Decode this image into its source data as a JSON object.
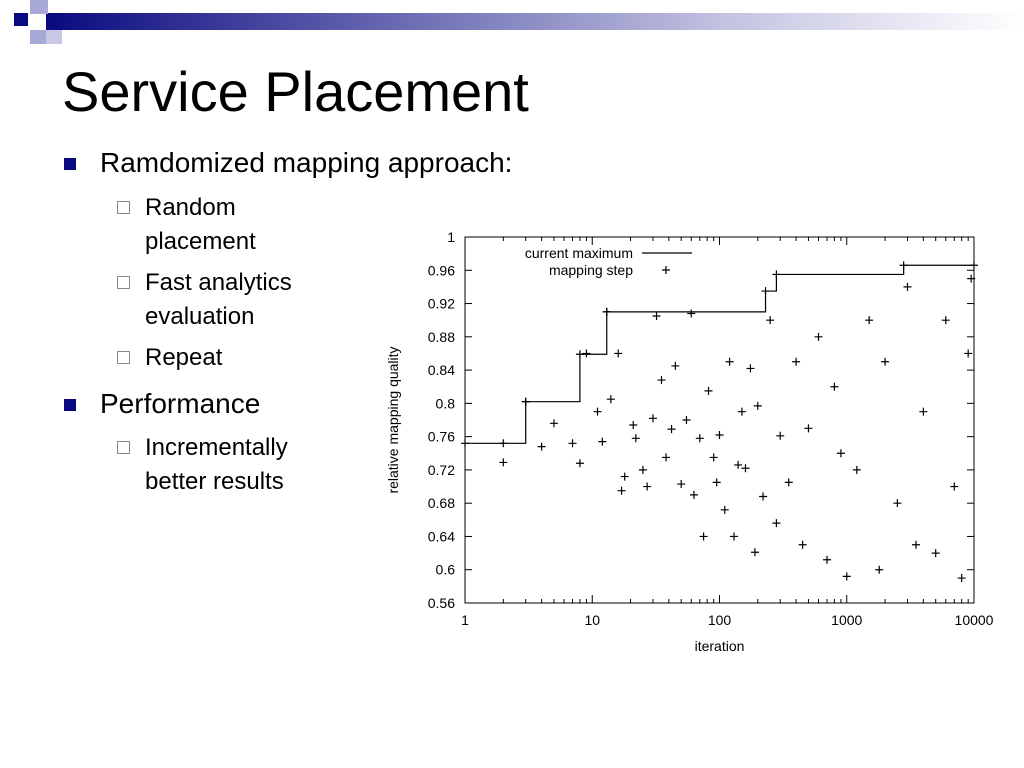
{
  "slide": {
    "title": "Service Placement",
    "bullets": [
      {
        "text": "Ramdomized mapping approach:",
        "sub": [
          {
            "lines": [
              "Random",
              "placement"
            ]
          },
          {
            "lines": [
              "Fast analytics",
              "evaluation"
            ]
          },
          {
            "lines": [
              "Repeat"
            ]
          }
        ]
      },
      {
        "text": "Performance",
        "sub": [
          {
            "lines": [
              "Incrementally",
              "better results"
            ]
          }
        ]
      }
    ],
    "colors": {
      "accent": "#0a0a80",
      "header_gradient_end": "#ffffff"
    }
  },
  "chart_data": {
    "type": "scatter",
    "xlabel": "iteration",
    "ylabel": "relative mapping quality",
    "xscale": "log",
    "xlim": [
      1,
      10000
    ],
    "ylim": [
      0.56,
      1.0
    ],
    "xticks": [
      1,
      10,
      100,
      1000,
      10000
    ],
    "xtick_labels": [
      "1",
      "10",
      "100",
      "1000",
      "10000"
    ],
    "yticks": [
      0.56,
      0.6,
      0.64,
      0.68,
      0.72,
      0.76,
      0.8,
      0.84,
      0.88,
      0.92,
      0.96,
      1.0
    ],
    "ytick_labels": [
      "0.56",
      "0.6",
      "0.64",
      "0.68",
      "0.72",
      "0.76",
      "0.8",
      "0.84",
      "0.88",
      "0.92",
      "0.96",
      "1"
    ],
    "grid": false,
    "legend_position": "top-left",
    "series": [
      {
        "name": "current maximum",
        "kind": "step",
        "x": [
          1,
          2,
          3,
          8,
          13,
          230,
          280,
          2800,
          10000
        ],
        "y": [
          0.752,
          0.752,
          0.802,
          0.859,
          0.91,
          0.935,
          0.955,
          0.966,
          0.966
        ]
      },
      {
        "name": "mapping step",
        "kind": "scatter",
        "marker": "+",
        "x": [
          2,
          3,
          4,
          5,
          7,
          8,
          9,
          11,
          12,
          13,
          14,
          16,
          17,
          18,
          21,
          22,
          25,
          27,
          30,
          32,
          35,
          38,
          42,
          45,
          50,
          55,
          60,
          63,
          70,
          75,
          82,
          90,
          95,
          100,
          110,
          120,
          130,
          140,
          150,
          160,
          175,
          190,
          200,
          220,
          250,
          280,
          300,
          350,
          400,
          450,
          500,
          600,
          700,
          800,
          900,
          1000,
          1200,
          1500,
          1800,
          2000,
          2500,
          3000,
          3500,
          4000,
          5000,
          6000,
          7000,
          8000,
          9000,
          9500
        ],
        "y": [
          0.729,
          0.802,
          0.748,
          0.776,
          0.752,
          0.728,
          0.86,
          0.79,
          0.754,
          0.91,
          0.805,
          0.86,
          0.695,
          0.712,
          0.774,
          0.758,
          0.72,
          0.7,
          0.782,
          0.905,
          0.828,
          0.735,
          0.769,
          0.845,
          0.703,
          0.78,
          0.908,
          0.69,
          0.758,
          0.64,
          0.815,
          0.735,
          0.705,
          0.762,
          0.672,
          0.85,
          0.64,
          0.726,
          0.79,
          0.722,
          0.842,
          0.621,
          0.797,
          0.688,
          0.9,
          0.656,
          0.761,
          0.705,
          0.85,
          0.63,
          0.77,
          0.88,
          0.612,
          0.82,
          0.74,
          0.592,
          0.72,
          0.9,
          0.6,
          0.85,
          0.68,
          0.94,
          0.63,
          0.79,
          0.62,
          0.9,
          0.7,
          0.59,
          0.86,
          0.95
        ]
      }
    ]
  }
}
